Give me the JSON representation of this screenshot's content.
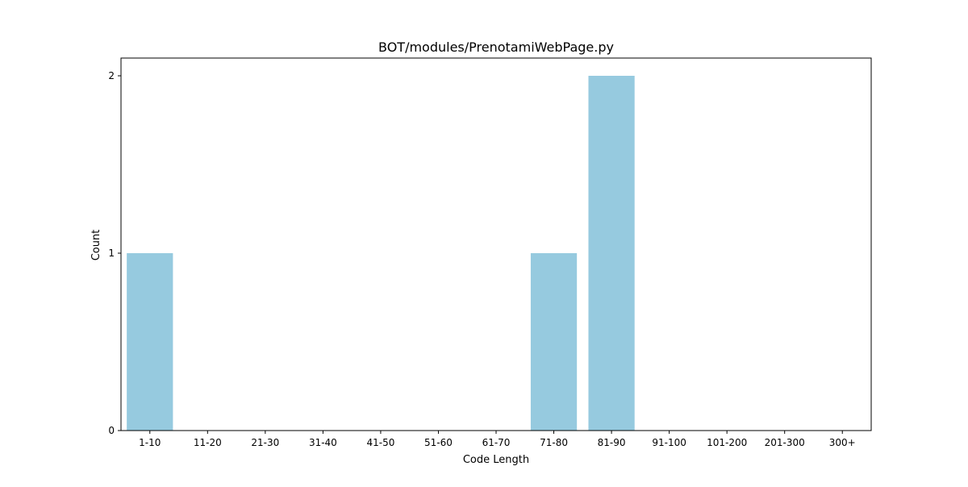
{
  "chart_data": {
    "type": "bar",
    "title": "BOT/modules/PrenotamiWebPage.py",
    "xlabel": "Code Length",
    "ylabel": "Count",
    "categories": [
      "1-10",
      "11-20",
      "21-30",
      "31-40",
      "41-50",
      "51-60",
      "61-70",
      "71-80",
      "81-90",
      "91-100",
      "101-200",
      "201-300",
      "300+"
    ],
    "values": [
      1,
      0,
      0,
      0,
      0,
      0,
      0,
      1,
      2,
      0,
      0,
      0,
      0
    ],
    "ylim": [
      0,
      2.1
    ],
    "yticks": [
      0,
      1,
      2
    ],
    "grid": false,
    "legend": "none",
    "colors": {
      "bar": "#96cadf",
      "axis": "#000000",
      "background": "#ffffff"
    }
  }
}
